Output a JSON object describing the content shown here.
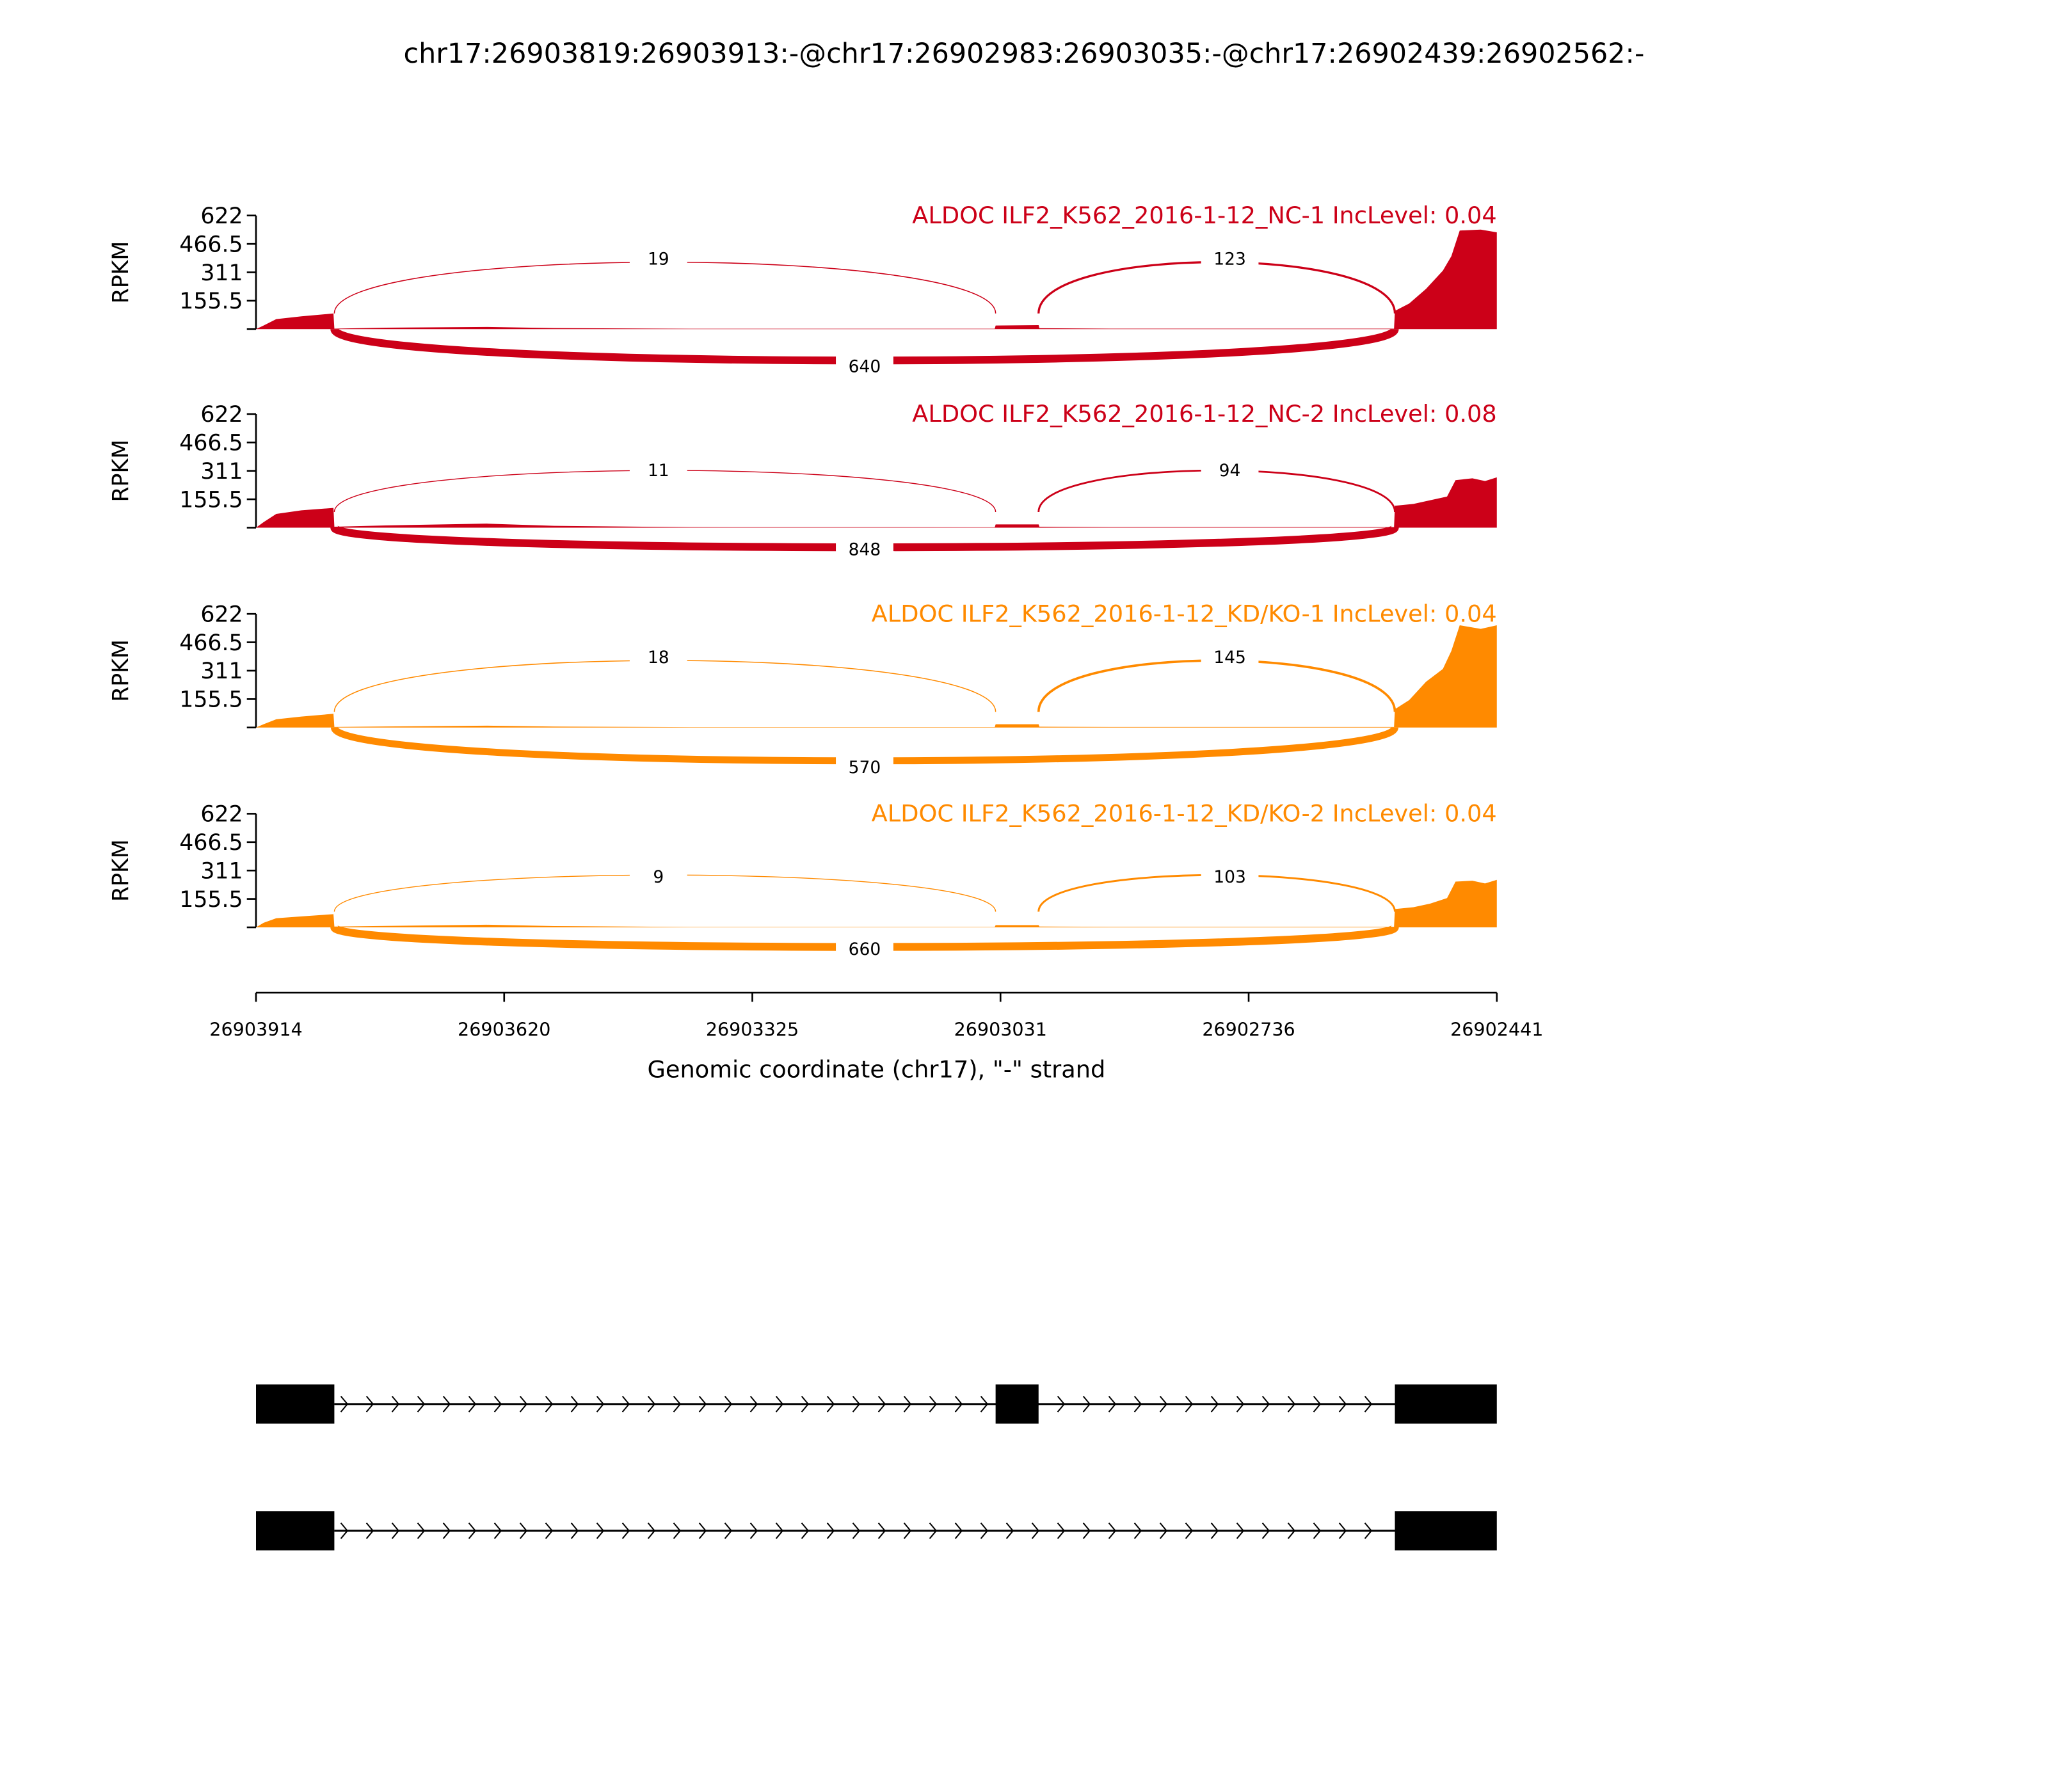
{
  "chart_data": {
    "type": "area",
    "title": "chr17:26903819:26903913:-@chr17:26902983:26903035:-@chr17:26902439:26902562:-",
    "xlabel": "Genomic coordinate (chr17), \"-\" strand",
    "ylabel": "RPKM",
    "xlim": [
      26903914,
      26902441
    ],
    "x_ticks": [
      "26903914",
      "26903620",
      "26903325",
      "26903031",
      "26902736",
      "26902441"
    ],
    "ylim": [
      0,
      622
    ],
    "y_ticks": [
      "622",
      "466.5",
      "311",
      "155.5"
    ],
    "colors": {
      "NC": "#cc0018",
      "KD": "#ff8a00"
    },
    "exons": [
      [
        26903914,
        26903821
      ],
      [
        26903036,
        26902985
      ],
      [
        26902562,
        26902441
      ]
    ],
    "transcripts": [
      {
        "exons": [
          0,
          1,
          2
        ]
      },
      {
        "exons": [
          0,
          2
        ]
      }
    ],
    "series": [
      {
        "name": "ALDOC ILF2_K562_2016-1-12_NC-1 IncLevel: 0.04",
        "color": "#cc0018",
        "coverage": [
          [
            26903914,
            0
          ],
          [
            26903905,
            20
          ],
          [
            26903890,
            55
          ],
          [
            26903860,
            70
          ],
          [
            26903822,
            86
          ],
          [
            26903821,
            3
          ],
          [
            26903760,
            8
          ],
          [
            26903640,
            12
          ],
          [
            26903560,
            6
          ],
          [
            26903400,
            2
          ],
          [
            26903037,
            2
          ],
          [
            26903036,
            20
          ],
          [
            26902985,
            22
          ],
          [
            26902984,
            5
          ],
          [
            26902900,
            3
          ],
          [
            26902563,
            3
          ],
          [
            26902562,
            100
          ],
          [
            26902545,
            140
          ],
          [
            26902525,
            220
          ],
          [
            26902505,
            320
          ],
          [
            26902495,
            400
          ],
          [
            26902485,
            540
          ],
          [
            26902460,
            545
          ],
          [
            26902441,
            530
          ]
        ],
        "junctions": [
          {
            "from": 0,
            "to": 1,
            "count": "19",
            "side": "top"
          },
          {
            "from": 1,
            "to": 2,
            "count": "123",
            "side": "top"
          },
          {
            "from": 0,
            "to": 2,
            "count": "640",
            "side": "bottom"
          }
        ]
      },
      {
        "name": "ALDOC ILF2_K562_2016-1-12_NC-2 IncLevel: 0.08",
        "color": "#cc0018",
        "coverage": [
          [
            26903914,
            0
          ],
          [
            26903905,
            30
          ],
          [
            26903890,
            75
          ],
          [
            26903860,
            95
          ],
          [
            26903822,
            108
          ],
          [
            26903821,
            5
          ],
          [
            26903760,
            12
          ],
          [
            26903640,
            22
          ],
          [
            26903560,
            10
          ],
          [
            26903400,
            3
          ],
          [
            26903037,
            2
          ],
          [
            26903036,
            18
          ],
          [
            26902985,
            18
          ],
          [
            26902984,
            5
          ],
          [
            26902900,
            3
          ],
          [
            26902563,
            3
          ],
          [
            26902562,
            120
          ],
          [
            26902540,
            130
          ],
          [
            26902520,
            150
          ],
          [
            26902500,
            170
          ],
          [
            26902490,
            260
          ],
          [
            26902470,
            270
          ],
          [
            26902455,
            255
          ],
          [
            26902441,
            275
          ]
        ],
        "junctions": [
          {
            "from": 0,
            "to": 1,
            "count": "11",
            "side": "top"
          },
          {
            "from": 1,
            "to": 2,
            "count": "94",
            "side": "top"
          },
          {
            "from": 0,
            "to": 2,
            "count": "848",
            "side": "bottom"
          }
        ]
      },
      {
        "name": "ALDOC ILF2_K562_2016-1-12_KD/KO-1 IncLevel: 0.04",
        "color": "#ff8a00",
        "coverage": [
          [
            26903914,
            0
          ],
          [
            26903905,
            18
          ],
          [
            26903890,
            45
          ],
          [
            26903860,
            60
          ],
          [
            26903822,
            75
          ],
          [
            26903821,
            3
          ],
          [
            26903760,
            6
          ],
          [
            26903640,
            10
          ],
          [
            26903560,
            5
          ],
          [
            26903400,
            2
          ],
          [
            26903037,
            2
          ],
          [
            26903036,
            18
          ],
          [
            26902985,
            18
          ],
          [
            26902984,
            4
          ],
          [
            26902900,
            3
          ],
          [
            26902563,
            3
          ],
          [
            26902562,
            100
          ],
          [
            26902545,
            150
          ],
          [
            26902525,
            250
          ],
          [
            26902505,
            320
          ],
          [
            26902495,
            420
          ],
          [
            26902485,
            560
          ],
          [
            26902460,
            540
          ],
          [
            26902441,
            560
          ]
        ],
        "junctions": [
          {
            "from": 0,
            "to": 1,
            "count": "18",
            "side": "top"
          },
          {
            "from": 1,
            "to": 2,
            "count": "145",
            "side": "top"
          },
          {
            "from": 0,
            "to": 2,
            "count": "570",
            "side": "bottom"
          }
        ]
      },
      {
        "name": "ALDOC ILF2_K562_2016-1-12_KD/KO-2 IncLevel: 0.04",
        "color": "#ff8a00",
        "coverage": [
          [
            26903914,
            0
          ],
          [
            26903905,
            25
          ],
          [
            26903890,
            50
          ],
          [
            26903860,
            60
          ],
          [
            26903822,
            72
          ],
          [
            26903821,
            4
          ],
          [
            26903760,
            8
          ],
          [
            26903640,
            14
          ],
          [
            26903560,
            7
          ],
          [
            26903400,
            2
          ],
          [
            26903037,
            2
          ],
          [
            26903036,
            12
          ],
          [
            26902985,
            12
          ],
          [
            26902984,
            4
          ],
          [
            26902900,
            3
          ],
          [
            26902563,
            3
          ],
          [
            26902562,
            100
          ],
          [
            26902540,
            110
          ],
          [
            26902520,
            130
          ],
          [
            26902500,
            160
          ],
          [
            26902490,
            250
          ],
          [
            26902470,
            255
          ],
          [
            26902455,
            240
          ],
          [
            26902441,
            260
          ]
        ],
        "junctions": [
          {
            "from": 0,
            "to": 1,
            "count": "9",
            "side": "top"
          },
          {
            "from": 1,
            "to": 2,
            "count": "103",
            "side": "top"
          },
          {
            "from": 0,
            "to": 2,
            "count": "660",
            "side": "bottom"
          }
        ]
      }
    ]
  }
}
